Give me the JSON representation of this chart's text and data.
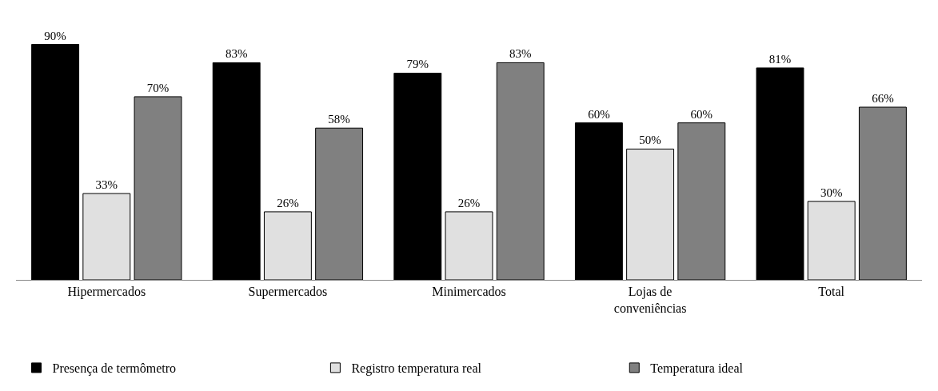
{
  "chart_data": {
    "type": "bar",
    "categories": [
      "Hipermercados",
      "Supermercados",
      "Minimercados",
      "Lojas de conveniências",
      "Total"
    ],
    "series": [
      {
        "name": "Presença de termômetro",
        "color": "#000000",
        "values": [
          90,
          83,
          79,
          60,
          81
        ],
        "value_labels": [
          "90%",
          "83%",
          "79%",
          "60%",
          "81%"
        ]
      },
      {
        "name": "Registro temperatura real",
        "color": "#e0e0e0",
        "values": [
          33,
          26,
          26,
          50,
          30
        ],
        "value_labels": [
          "33%",
          "26%",
          "26%",
          "50%",
          "30%"
        ]
      },
      {
        "name": "Temperatura ideal",
        "color": "#808080",
        "values": [
          70,
          58,
          83,
          60,
          66
        ],
        "value_labels": [
          "70%",
          "58%",
          "83%",
          "60%",
          "66%"
        ]
      }
    ],
    "legend": "bottom"
  }
}
